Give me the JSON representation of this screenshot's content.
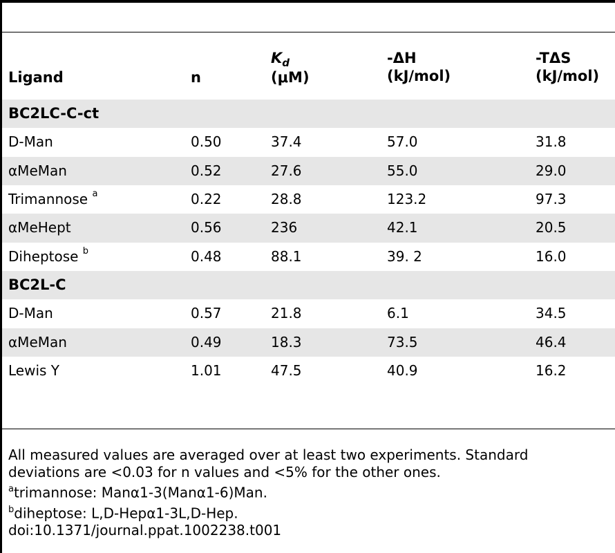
{
  "table": {
    "headers": [
      {
        "text": "Ligand"
      },
      {
        "text": "n"
      },
      {
        "symbol": "K",
        "subscript": "d",
        "unit": "(μM)"
      },
      {
        "text": "-ΔH",
        "unit": "(kJ/mol)"
      },
      {
        "text": "-TΔS",
        "unit": "(kJ/mol)"
      }
    ],
    "rows": [
      {
        "type": "section",
        "cells": [
          "BC2LC-C-ct",
          "",
          "",
          "",
          ""
        ]
      },
      {
        "type": "data",
        "cells": [
          "D-Man",
          "0.50",
          "37.4",
          "57.0",
          "31.8"
        ],
        "sup": ""
      },
      {
        "type": "data",
        "cells": [
          "αMeMan",
          "0.52",
          "27.6",
          "55.0",
          "29.0"
        ],
        "sup": ""
      },
      {
        "type": "data",
        "cells": [
          "Trimannose",
          "0.22",
          "28.8",
          "123.2",
          "97.3"
        ],
        "sup": "a"
      },
      {
        "type": "data",
        "cells": [
          "αMeHept",
          "0.56",
          "236",
          "42.1",
          "20.5"
        ],
        "sup": ""
      },
      {
        "type": "data",
        "cells": [
          "Diheptose",
          "0.48",
          "88.1",
          "39. 2",
          "16.0"
        ],
        "sup": "b"
      },
      {
        "type": "section",
        "cells": [
          "BC2L-C",
          "",
          "",
          "",
          ""
        ]
      },
      {
        "type": "data",
        "cells": [
          "D-Man",
          "0.57",
          "21.8",
          "6.1",
          "34.5"
        ],
        "sup": ""
      },
      {
        "type": "data",
        "cells": [
          "αMeMan",
          "0.49",
          "18.3",
          "73.5",
          "46.4"
        ],
        "sup": ""
      },
      {
        "type": "data",
        "cells": [
          "Lewis Y",
          "1.01",
          "47.5",
          "40.9",
          "16.2"
        ],
        "sup": ""
      }
    ]
  },
  "notes": {
    "general_line1": "All measured values are averaged over at least two experiments. Standard",
    "general_line2": "deviations are <0.03 for n values and <5% for the other ones.",
    "footnote_a_marker": "a",
    "footnote_a": "trimannose: Manα1-3(Manα1-6)Man.",
    "footnote_b_marker": "b",
    "footnote_b": "diheptose: L,D-Hepα1-3L,D-Hep.",
    "doi": "doi:10.1371/journal.ppat.1002238.t001"
  },
  "colors": {
    "shaded_row": "#e6e6e6",
    "rule": "#000000"
  }
}
